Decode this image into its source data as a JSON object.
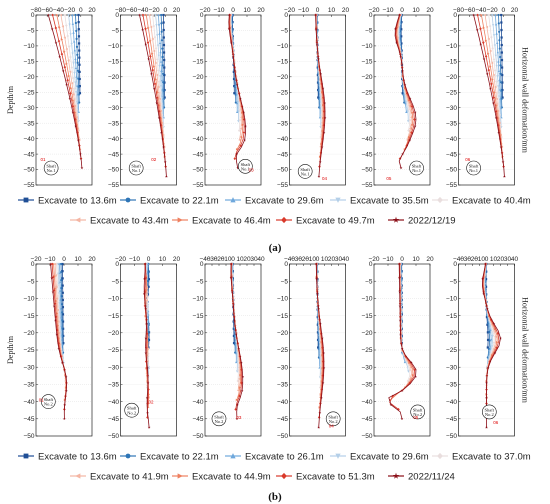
{
  "figures": [
    {
      "caption": "(a)",
      "ylabel": "Depth/m",
      "right_label": "Horizontal wall deformation/mm",
      "legend": [
        {
          "label": "Excavate to 13.6m",
          "color": "#1f4e96",
          "marker": "square"
        },
        {
          "label": "Excavate to 22.1m",
          "color": "#2e75b6",
          "marker": "circle"
        },
        {
          "label": "Excavate to 29.6m",
          "color": "#6fa8dc",
          "marker": "triangle"
        },
        {
          "label": "Excavate to 35.5m",
          "color": "#b4cfe8",
          "marker": "triangle-down"
        },
        {
          "label": "Excavate to 40.4m",
          "color": "#e9dede",
          "marker": "diamond"
        },
        {
          "label": "Excavate to 43.4m",
          "color": "#f4b6a4",
          "marker": "triangle-left"
        },
        {
          "label": "Excavate to 46.4m",
          "color": "#ee8060",
          "marker": "triangle-right"
        },
        {
          "label": "Excavate to 49.7m",
          "color": "#d93a2b",
          "marker": "diamond"
        },
        {
          "label": "2022/12/19",
          "color": "#8b0f18",
          "marker": "star"
        }
      ],
      "panels": [
        {
          "xticks": [
            "−80",
            "−60",
            "−40",
            "−20",
            "0",
            "20"
          ],
          "xmin": -80,
          "xmax": 20,
          "badge": "Shaft\nNo.1",
          "badge_pos": [
            0.27,
            0.9
          ],
          "label_red": "01",
          "red_pos": [
            0.08,
            0.86
          ],
          "shape": "cantileverL",
          "mag": 60
        },
        {
          "xticks": [
            "−80",
            "−60",
            "−40",
            "−20",
            "0",
            "20"
          ],
          "xmin": -80,
          "xmax": 20,
          "badge": "Shaft\nNo.1",
          "badge_pos": [
            0.28,
            0.9
          ],
          "label_red": "02",
          "red_pos": [
            0.55,
            0.86
          ],
          "shape": "cantileverL",
          "mag": 48
        },
        {
          "xticks": [
            "−20",
            "−10",
            "0",
            "10",
            "20"
          ],
          "xmin": -20,
          "xmax": 20,
          "badge": "Shaft\nNo.1",
          "badge_pos": [
            0.72,
            0.89
          ],
          "label_red": "03",
          "red_pos": [
            0.78,
            0.92
          ],
          "shape": "bulge",
          "mag": 9
        },
        {
          "xticks": [
            "−20",
            "−10",
            "0",
            "10",
            "20"
          ],
          "xmin": -20,
          "xmax": 20,
          "badge": "Shaft\nNo.1",
          "badge_pos": [
            0.28,
            0.92
          ],
          "label_red": "04",
          "red_pos": [
            0.58,
            0.97
          ],
          "shape": "bulge2",
          "mag": 6
        },
        {
          "xticks": [
            "−20",
            "−10",
            "0",
            "10",
            "20"
          ],
          "xmin": -20,
          "xmax": 20,
          "badge": "Shaft\nNo.1",
          "badge_pos": [
            0.76,
            0.9
          ],
          "label_red": "05",
          "red_pos": [
            0.22,
            0.97
          ],
          "shape": "bulgeDeep",
          "mag": 10
        },
        {
          "xticks": [
            "−80",
            "−60",
            "−40",
            "−20",
            "0",
            "20"
          ],
          "xmin": -80,
          "xmax": 20,
          "badge": "Shaft\nNo.1",
          "badge_pos": [
            0.27,
            0.9
          ],
          "label_red": "06",
          "red_pos": [
            0.12,
            0.86
          ],
          "shape": "cantileverL",
          "mag": 55
        }
      ],
      "yticks": [
        "0",
        "−5",
        "−10",
        "−15",
        "−20",
        "−25",
        "−30",
        "−35",
        "−40",
        "−45",
        "−50",
        "−55"
      ]
    },
    {
      "caption": "(b)",
      "ylabel": "Depth/m",
      "right_label": "Horizontal wall deformation/mm",
      "legend": [
        {
          "label": "Excavate to 13.6m",
          "color": "#1f4e96",
          "marker": "square"
        },
        {
          "label": "Excavate to 22.1m",
          "color": "#2e75b6",
          "marker": "circle"
        },
        {
          "label": "Excavate to 26.1m",
          "color": "#6fa8dc",
          "marker": "triangle"
        },
        {
          "label": "Excavate to 29.6m",
          "color": "#b4cfe8",
          "marker": "triangle-down"
        },
        {
          "label": "Excavate to 37.0m",
          "color": "#e9dede",
          "marker": "diamond"
        },
        {
          "label": "Excavate to 41.9m",
          "color": "#f4b6a4",
          "marker": "triangle-left"
        },
        {
          "label": "Excavate to 44.9m",
          "color": "#ee8060",
          "marker": "triangle-right"
        },
        {
          "label": "Excavate to 51.3m",
          "color": "#d93a2b",
          "marker": "diamond"
        },
        {
          "label": "2022/11/24",
          "color": "#8b0f18",
          "marker": "star"
        }
      ],
      "panels": [
        {
          "xticks": [
            "−20",
            "−10",
            "0",
            "10",
            "20"
          ],
          "xmin": -20,
          "xmax": 20,
          "badge": "Shaft\nNo.2",
          "badge_pos": [
            0.22,
            0.8
          ],
          "label_red": "01",
          "red_pos": [
            0.05,
            0.8
          ],
          "shape": "crossL",
          "mag": 12
        },
        {
          "xticks": [
            "−20",
            "−10",
            "0",
            "10",
            "20"
          ],
          "xmin": -20,
          "xmax": 20,
          "badge": "Shaft\nNo.2",
          "badge_pos": [
            0.2,
            0.85
          ],
          "label_red": "02",
          "red_pos": [
            0.5,
            0.81
          ],
          "shape": "short",
          "mag": 5
        },
        {
          "xticks": [
            "−40",
            "−30",
            "−20",
            "−10",
            "0",
            "10",
            "20",
            "30",
            "40"
          ],
          "xmin": -40,
          "xmax": 40,
          "badge": "Shaft\nNo.2",
          "badge_pos": [
            0.25,
            0.9
          ],
          "label_red": "03",
          "red_pos": [
            0.56,
            0.9
          ],
          "shape": "bulge",
          "mag": 14
        },
        {
          "xticks": [
            "−40",
            "−30",
            "−20",
            "−10",
            "0",
            "10",
            "20",
            "30",
            "40"
          ],
          "xmin": -40,
          "xmax": 40,
          "badge": "Shaft\nNo.2",
          "badge_pos": [
            0.78,
            0.9
          ],
          "label_red": "04",
          "red_pos": [
            0.7,
            0.95
          ],
          "shape": "bulgeMid",
          "mag": 10
        },
        {
          "xticks": [
            "−20",
            "−10",
            "0",
            "10",
            "20"
          ],
          "xmin": -20,
          "xmax": 20,
          "badge": "Shaft\nNo.2",
          "badge_pos": [
            0.78,
            0.86
          ],
          "label_red": "05",
          "red_pos": [
            0.7,
            0.9
          ],
          "shape": "sCurve",
          "mag": 11
        },
        {
          "xticks": [
            "−40",
            "−30",
            "−20",
            "−10",
            "0",
            "10",
            "20",
            "30",
            "40"
          ],
          "xmin": -40,
          "xmax": 40,
          "badge": "Shaft\nNo.2",
          "badge_pos": [
            0.55,
            0.86
          ],
          "label_red": "06",
          "red_pos": [
            0.62,
            0.93
          ],
          "shape": "bulgeUpper",
          "mag": 20
        }
      ],
      "yticks": [
        "0",
        "−5",
        "−10",
        "−15",
        "−20",
        "−25",
        "−30",
        "−35",
        "−40",
        "−45",
        "−50"
      ]
    }
  ]
}
